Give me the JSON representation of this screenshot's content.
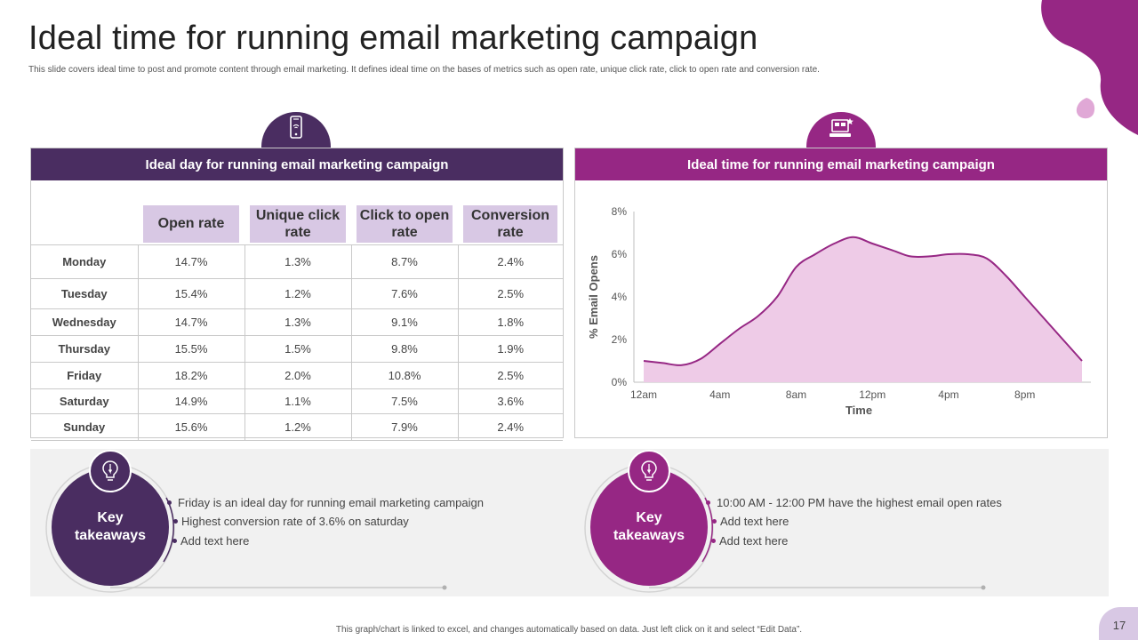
{
  "page": {
    "title": "Ideal time for running email marketing campaign",
    "subtitle": "This slide covers ideal time to post and promote content through email marketing. It defines ideal time on the bases of metrics such as open rate, unique click rate, click to open rate and conversion rate.",
    "footnote": "This graph/chart is linked to excel, and changes automatically based on data. Just left click on it and select “Edit Data”.",
    "page_number": "17"
  },
  "colors": {
    "dark_purple": "#4a2d61",
    "magenta": "#962784",
    "light_lavender": "#d8c8e4",
    "area_fill": "#eecbe7",
    "line": "#962784",
    "band": "#f1f1f1"
  },
  "left_panel": {
    "header": "Ideal day for running email marketing campaign",
    "icon": "smartphone-icon",
    "columns": [
      "Open rate",
      "Unique click rate",
      "Click to open rate",
      "Conversion rate"
    ],
    "rows": [
      {
        "day": "Monday",
        "values": [
          "14.7%",
          "1.3%",
          "8.7%",
          "2.4%"
        ]
      },
      {
        "day": "Tuesday",
        "values": [
          "15.4%",
          "1.2%",
          "7.6%",
          "2.5%"
        ]
      },
      {
        "day": "Wednesday",
        "values": [
          "14.7%",
          "1.3%",
          "9.1%",
          "1.8%"
        ]
      },
      {
        "day": "Thursday",
        "values": [
          "15.5%",
          "1.5%",
          "9.8%",
          "1.9%"
        ]
      },
      {
        "day": "Friday",
        "values": [
          "18.2%",
          "2.0%",
          "10.8%",
          "2.5%"
        ]
      },
      {
        "day": "Saturday",
        "values": [
          "14.9%",
          "1.1%",
          "7.5%",
          "3.6%"
        ]
      },
      {
        "day": "Sunday",
        "values": [
          "15.6%",
          "1.2%",
          "7.9%",
          "2.4%"
        ]
      }
    ]
  },
  "right_panel": {
    "header": "Ideal time for running email marketing campaign",
    "icon": "computer-icon"
  },
  "chart_data": {
    "type": "area",
    "title": "",
    "xlabel": "Time",
    "ylabel": "% Email Opens",
    "x_tick_labels": [
      "12am",
      "4am",
      "8am",
      "12pm",
      "4pm",
      "8pm"
    ],
    "y_tick_labels": [
      "0%",
      "2%",
      "4%",
      "6%",
      "8%"
    ],
    "ylim": [
      0,
      8
    ],
    "x": [
      0,
      1,
      2,
      3,
      4,
      5,
      6,
      7,
      8,
      9,
      10,
      11,
      12,
      13,
      14,
      15,
      16,
      17,
      18,
      19,
      20,
      21,
      22,
      23
    ],
    "values": [
      1.0,
      0.9,
      0.8,
      1.1,
      1.8,
      2.5,
      3.1,
      4.0,
      5.4,
      6.0,
      6.5,
      6.8,
      6.5,
      6.2,
      5.9,
      5.9,
      6.0,
      6.0,
      5.8,
      5.0,
      4.0,
      3.0,
      2.0,
      1.0
    ],
    "grid": false
  },
  "takeaways": [
    {
      "title_line1": "Key",
      "title_line2": "takeaways",
      "icon": "lightbulb-pen-icon",
      "items": [
        "Friday is an ideal day for running email marketing campaign",
        "Highest conversion rate of 3.6% on saturday",
        "Add text here"
      ]
    },
    {
      "title_line1": "Key",
      "title_line2": "takeaways",
      "icon": "lightbulb-pen-icon",
      "items": [
        "10:00 AM - 12:00 PM have the highest email open rates",
        "Add text here",
        "Add text here"
      ]
    }
  ]
}
